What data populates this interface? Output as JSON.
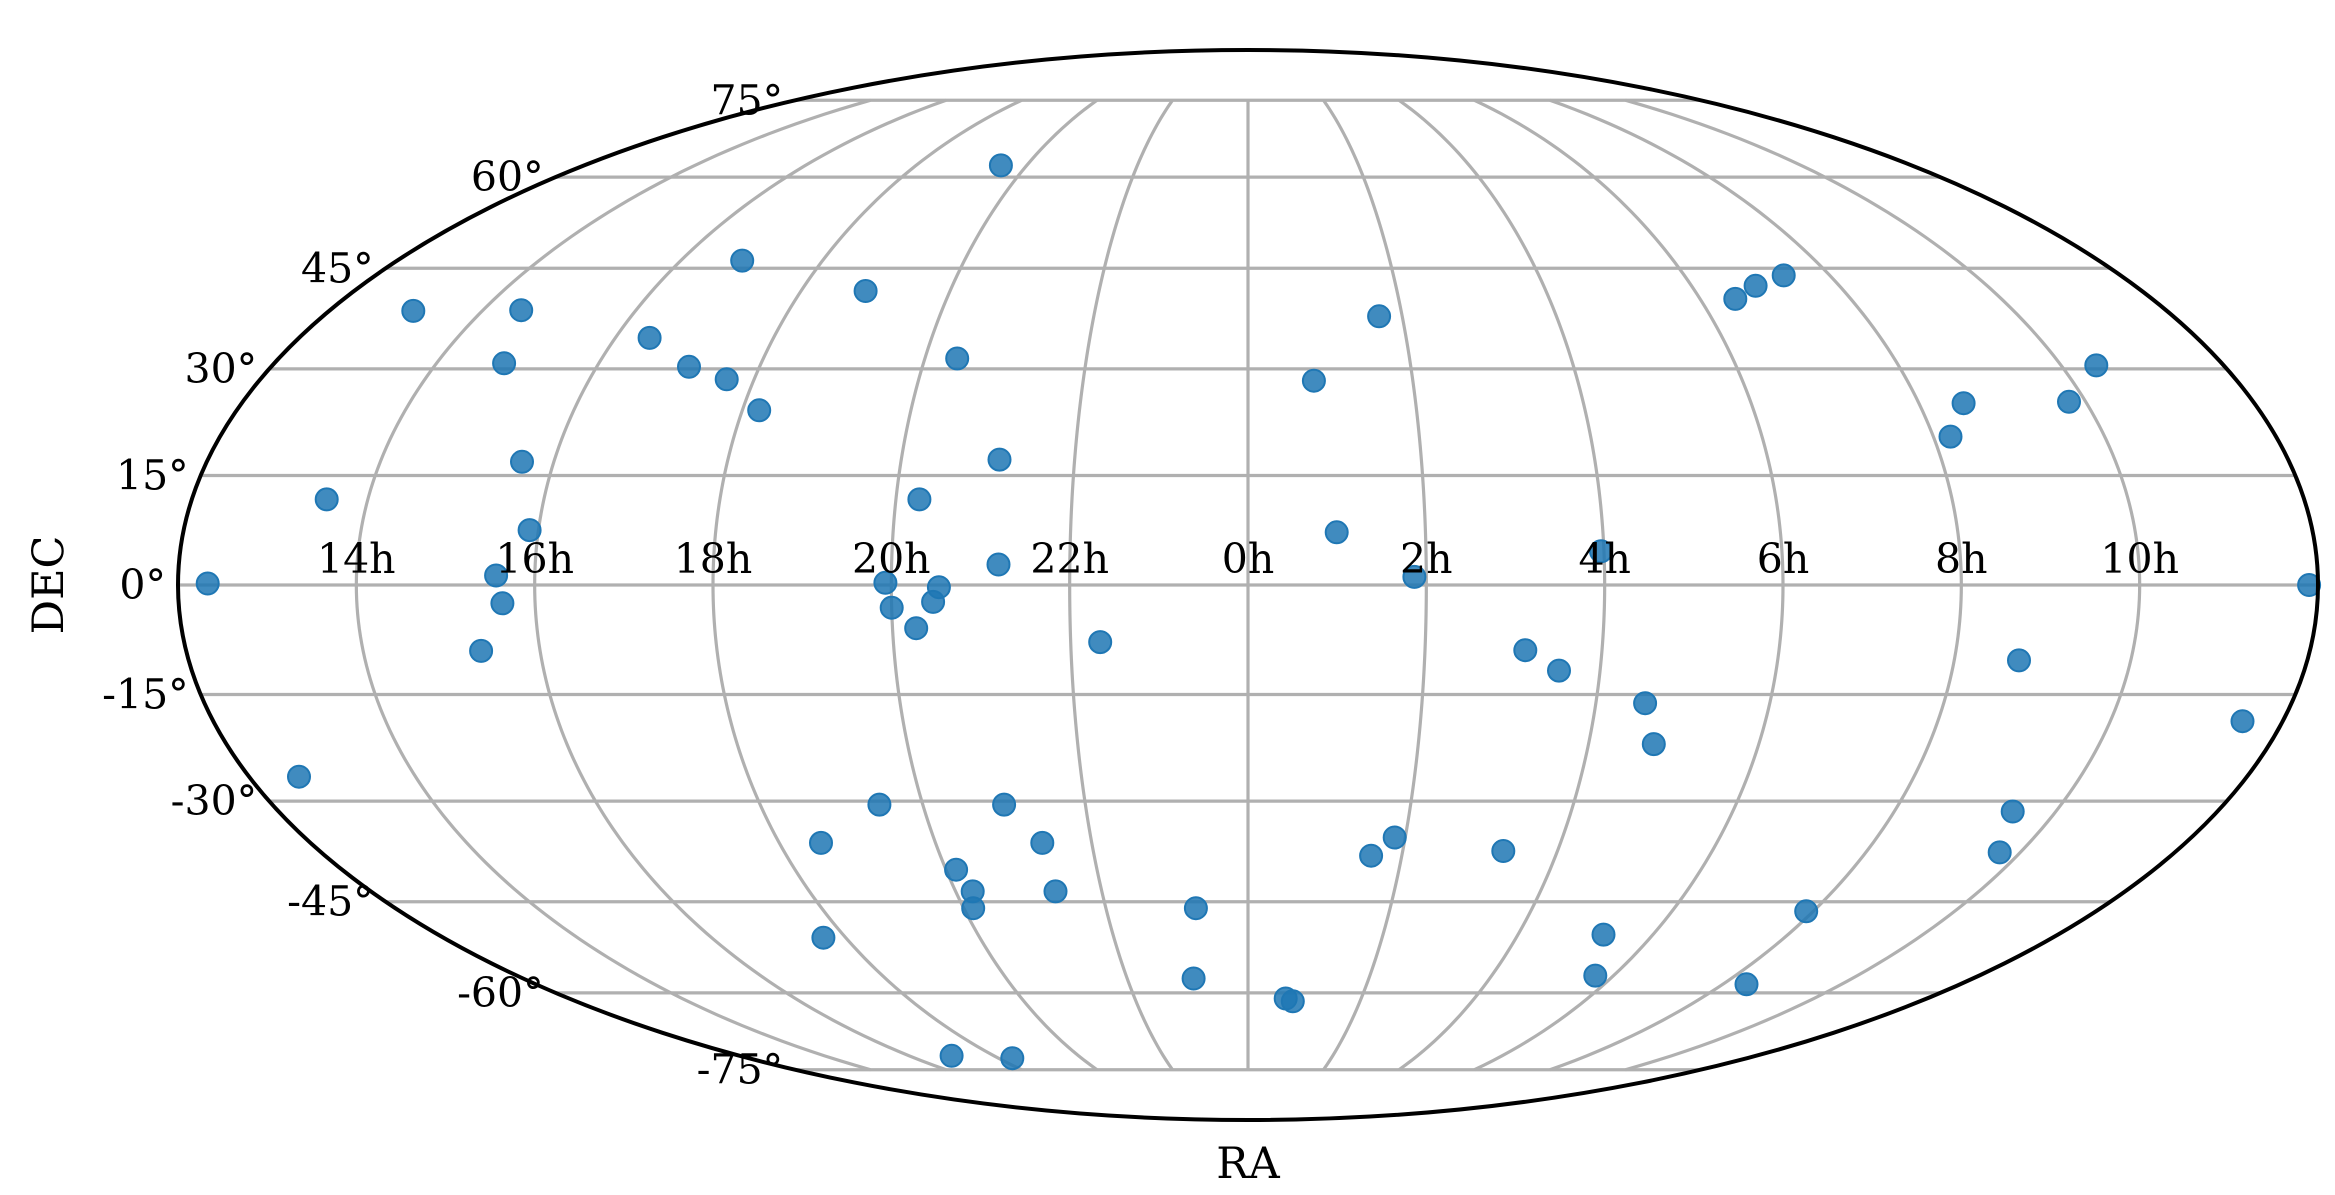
{
  "chart_data": {
    "type": "scatter",
    "projection": "mollweide",
    "xlabel": "RA",
    "ylabel": "DEC",
    "ra_tick_labels": [
      {
        "value": -150,
        "label": "14h"
      },
      {
        "value": -120,
        "label": "16h"
      },
      {
        "value": -90,
        "label": "18h"
      },
      {
        "value": -60,
        "label": "20h"
      },
      {
        "value": -30,
        "label": "22h"
      },
      {
        "value": 0,
        "label": "0h"
      },
      {
        "value": 30,
        "label": "2h"
      },
      {
        "value": 60,
        "label": "4h"
      },
      {
        "value": 90,
        "label": "6h"
      },
      {
        "value": 120,
        "label": "8h"
      },
      {
        "value": 150,
        "label": "10h"
      }
    ],
    "dec_tick_labels": [
      {
        "value": 75,
        "label": "75°"
      },
      {
        "value": 60,
        "label": "60°"
      },
      {
        "value": 45,
        "label": "45°"
      },
      {
        "value": 30,
        "label": "30°"
      },
      {
        "value": 15,
        "label": "15°"
      },
      {
        "value": 0,
        "label": "0°"
      },
      {
        "value": -15,
        "label": "-15°"
      },
      {
        "value": -30,
        "label": "-30°"
      },
      {
        "value": -45,
        "label": "-45°"
      },
      {
        "value": -60,
        "label": "-60°"
      },
      {
        "value": -75,
        "label": "-75°"
      }
    ],
    "grid": true,
    "marker_color": "#1f77b4",
    "frame_color": "#000000",
    "grid_color": "#b0b0b0",
    "points": [
      {
        "ra": -175,
        "dec": 0.2
      },
      {
        "ra": -171,
        "dec": -26.5
      },
      {
        "ra": -163.5,
        "dec": 38.5
      },
      {
        "ra": -157,
        "dec": 11.7
      },
      {
        "ra": -137.5,
        "dec": 30.8
      },
      {
        "ra": -126.5,
        "dec": 1.3
      },
      {
        "ra": -125.5,
        "dec": -2.5
      },
      {
        "ra": -130,
        "dec": -9
      },
      {
        "ra": -121.5,
        "dec": 7.5
      },
      {
        "ra": -142.5,
        "dec": 38.6
      },
      {
        "ra": -125.5,
        "dec": 16.9
      },
      {
        "ra": -107,
        "dec": 46.2
      },
      {
        "ra": -113.5,
        "dec": 34.5
      },
      {
        "ra": -103,
        "dec": 30.3
      },
      {
        "ra": -95,
        "dec": 28.5
      },
      {
        "ra": -87,
        "dec": 24.1
      },
      {
        "ra": -77,
        "dec": 41.5
      },
      {
        "ra": -67,
        "dec": 62.1
      },
      {
        "ra": -54,
        "dec": 31.5
      },
      {
        "ra": -43,
        "dec": 17.2
      },
      {
        "ra": -56,
        "dec": 11.7
      },
      {
        "ra": -61,
        "dec": 0.3
      },
      {
        "ra": -60,
        "dec": -3.1
      },
      {
        "ra": -52,
        "dec": -0.3
      },
      {
        "ra": -53,
        "dec": -2.3
      },
      {
        "ra": -56,
        "dec": -5.9
      },
      {
        "ra": -42,
        "dec": 2.8
      },
      {
        "ra": -25,
        "dec": -7.8
      },
      {
        "ra": -68,
        "dec": -30.5
      },
      {
        "ra": -82,
        "dec": -36.1
      },
      {
        "ra": -45,
        "dec": -30.5
      },
      {
        "ra": -39.5,
        "dec": -36.1
      },
      {
        "ra": -58,
        "dec": -40.1
      },
      {
        "ra": -56.5,
        "dec": -43.4
      },
      {
        "ra": -58,
        "dec": -46
      },
      {
        "ra": -39.5,
        "dec": -43.4
      },
      {
        "ra": -95,
        "dec": -50.7
      },
      {
        "ra": -11,
        "dec": -46
      },
      {
        "ra": -13.5,
        "dec": -57.5
      },
      {
        "ra": 12,
        "dec": 28.3
      },
      {
        "ra": 25.5,
        "dec": 37.7
      },
      {
        "ra": 15,
        "dec": 7.2
      },
      {
        "ra": 28,
        "dec": 1.1
      },
      {
        "ra": 24,
        "dec": -38
      },
      {
        "ra": 28,
        "dec": -35.3
      },
      {
        "ra": 47,
        "dec": -8.9
      },
      {
        "ra": 53,
        "dec": -11.7
      },
      {
        "ra": 49.5,
        "dec": -37.3
      },
      {
        "ra": 59.5,
        "dec": 4.6
      },
      {
        "ra": 68.5,
        "dec": -16.2
      },
      {
        "ra": 71.5,
        "dec": -21.9
      },
      {
        "ra": 97,
        "dec": 40.3
      },
      {
        "ra": 103,
        "dec": 42.3
      },
      {
        "ra": 110.5,
        "dec": 43.9
      },
      {
        "ra": 123,
        "dec": 20.4
      },
      {
        "ra": 128,
        "dec": 25.1
      },
      {
        "ra": 147,
        "dec": 25.3
      },
      {
        "ra": 156.5,
        "dec": 30.5
      },
      {
        "ra": 131,
        "dec": -10.3
      },
      {
        "ra": 173,
        "dec": -18.7
      },
      {
        "ra": 142,
        "dec": -31.5
      },
      {
        "ra": 146,
        "dec": -37.5
      },
      {
        "ra": 118.5,
        "dec": -46.5
      },
      {
        "ra": 79,
        "dec": -50.2
      },
      {
        "ra": 85.5,
        "dec": -57
      },
      {
        "ra": 126,
        "dec": -58.5
      },
      {
        "ra": 178.5,
        "dec": 0
      },
      {
        "ra": -105,
        "dec": -72
      },
      {
        "ra": -85,
        "dec": -72.5
      },
      {
        "ra": 10,
        "dec": -61
      },
      {
        "ra": 12,
        "dec": -61.5
      }
    ]
  }
}
